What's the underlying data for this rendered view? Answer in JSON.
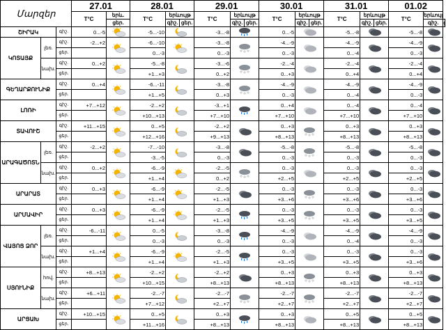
{
  "header": {
    "title": "Մարզեր",
    "dates": [
      "27.01",
      "28.01",
      "29.01",
      "30.01",
      "31.01",
      "01.02"
    ],
    "temp_label": "T°C",
    "sky_labels": [
      "երև.",
      "երևույթ",
      "երևույթ",
      "երևույթ",
      "երևույթ",
      "երևույթ"
    ],
    "night": "գիշ.",
    "day": "ցեր."
  },
  "groups": [
    {
      "region": "ՇԻՐԱԿ",
      "subs": [
        {
          "label": "",
          "rows": [
            {
              "t": [
                "0...-5",
                "-5...-10",
                "-3...-8",
                "0...-5",
                "-5...-8",
                "-5...-8"
              ],
              "ic": [
                "sun",
                "moon",
                "rain",
                "cloud",
                "dark",
                "dark"
              ]
            }
          ]
        }
      ]
    },
    {
      "region": "ԿՈՏԱՅՔ",
      "subs": [
        {
          "label": "լեռ.",
          "rows": [
            {
              "t": [
                "-2...+2",
                "-6...-10",
                "-3...-8",
                "-4...-9",
                "-4...-9",
                "-4...-9"
              ],
              "ic": [
                "sun",
                "sun",
                "snow",
                "cloud",
                "dark",
                "dark"
              ]
            },
            {
              "t": [
                "",
                "0...-3",
                "0...-3",
                "0...-3",
                "0...-4",
                "0...-3"
              ],
              "ic": [
                "",
                "",
                "",
                "",
                "",
                ""
              ]
            }
          ]
        },
        {
          "label": "նախ.",
          "rows": [
            {
              "t": [
                "0...+2",
                "-5...-8",
                "-3...-6",
                "-2...-4",
                "-2...-4",
                "-2...-4"
              ],
              "ic": [
                "sun",
                "moon",
                "snow",
                "cloud",
                "dark",
                "dark"
              ]
            },
            {
              "t": [
                "",
                "+1...+3",
                "0...+2",
                "0...+3",
                "0...+4",
                "0...+4"
              ],
              "ic": [
                "",
                "",
                "",
                "",
                "",
                ""
              ]
            }
          ]
        }
      ]
    },
    {
      "region": "ԳԵՂԱՐՔՈՒՆԻՔ",
      "subs": [
        {
          "label": "",
          "rows": [
            {
              "t": [
                "0...+4",
                "-6...-11",
                "-3...-8",
                "-4...-9",
                "-4...-9",
                "-4...-9"
              ],
              "ic": [
                "sun",
                "moon",
                "snow",
                "cloud",
                "dark",
                "dark"
              ]
            },
            {
              "t": [
                "",
                "+1...+5",
                "0...+3",
                "0...-3",
                "0...-4",
                "0...-3"
              ],
              "ic": [
                "",
                "",
                "",
                "",
                "",
                ""
              ]
            }
          ]
        }
      ]
    },
    {
      "region": "ԼՈՌԻ",
      "subs": [
        {
          "label": "",
          "rows": [
            {
              "t": [
                "+7...+12",
                "-2...+2",
                "-3...+1",
                "0...+4",
                "0...-4",
                "0...-4"
              ],
              "ic": [
                "sun",
                "moon",
                "rain",
                "cloud",
                "dark",
                "dark"
              ]
            },
            {
              "t": [
                "",
                "+10...+13",
                "+7...+10",
                "+7...+10",
                "+7...+10",
                "+7...+10"
              ],
              "ic": [
                "",
                "",
                "",
                "",
                "",
                ""
              ]
            }
          ]
        }
      ]
    },
    {
      "region": "ՏԱՎՈՒՇ",
      "subs": [
        {
          "label": "",
          "rows": [
            {
              "t": [
                "+11...+15",
                "0...+5",
                "-2...+2",
                "0...+3",
                "0...+3",
                "0...+3"
              ],
              "ic": [
                "sun",
                "moon",
                "dark",
                "snow",
                "dark",
                "dark"
              ]
            },
            {
              "t": [
                "",
                "+12...+16",
                "+9...+13",
                "+8...+13",
                "+8...+13",
                "+8...+13"
              ],
              "ic": [
                "",
                "",
                "",
                "",
                "",
                ""
              ]
            }
          ]
        }
      ]
    },
    {
      "region": "ԱՐԱԳԱԾՈՏՆ",
      "subs": [
        {
          "label": "լեռ.",
          "rows": [
            {
              "t": [
                "-2...+2",
                "-7...-10",
                "-3...-8",
                "-5...-8",
                "-5...-8",
                "-5...-8"
              ],
              "ic": [
                "sun",
                "moon",
                "dark",
                "snow",
                "dark",
                "dark"
              ]
            },
            {
              "t": [
                "",
                "-3...-5",
                "0...-3",
                "0...-3",
                "0...-3",
                "0...-3"
              ],
              "ic": [
                "",
                "",
                "",
                "",
                "",
                ""
              ]
            }
          ]
        },
        {
          "label": "նախ.",
          "rows": [
            {
              "t": [
                "0...+2",
                "-6...-9",
                "-2...-5",
                "0...-3",
                "0...-3",
                "0...-3"
              ],
              "ic": [
                "sun",
                "sun",
                "snow",
                "cloud",
                "dark",
                "dark"
              ]
            },
            {
              "t": [
                "",
                "+1...+4",
                "0...+2",
                "+2...+5",
                "+2...+5",
                "+2...+5"
              ],
              "ic": [
                "",
                "",
                "",
                "",
                "",
                ""
              ]
            }
          ]
        }
      ]
    },
    {
      "region": "ԱՐԱՐԱՏ",
      "subs": [
        {
          "label": "",
          "rows": [
            {
              "t": [
                "0...+3",
                "-6...-9",
                "-2...-5",
                "0...-3",
                "0...-3",
                "0...-3"
              ],
              "ic": [
                "sun",
                "sun",
                "dark",
                "snow",
                "dark",
                "dark"
              ]
            },
            {
              "t": [
                "",
                "+1...+4",
                "+1...+3",
                "+3...+6",
                "+3...+6",
                "+3...+6"
              ],
              "ic": [
                "",
                "",
                "",
                "",
                "",
                ""
              ]
            }
          ]
        }
      ]
    },
    {
      "region": "ԱՐՄԱՎԻՐ",
      "subs": [
        {
          "label": "",
          "rows": [
            {
              "t": [
                "0...+3",
                "-6...-9",
                "-2...-5",
                "0...-3",
                "0...-3",
                "0...-3"
              ],
              "ic": [
                "sun",
                "sun",
                "rain",
                "snow",
                "dark",
                "dark"
              ]
            },
            {
              "t": [
                "",
                "+1...+4",
                "+1...+3",
                "+3...+5",
                "+3...+5",
                "+3...+5"
              ],
              "ic": [
                "",
                "",
                "",
                "",
                "",
                ""
              ]
            }
          ]
        }
      ]
    },
    {
      "region": "ՎԱՅՈՑ ՁՈՐ",
      "subs": [
        {
          "label": "լեռ.",
          "rows": [
            {
              "t": [
                "-6...-11",
                "0...-5",
                "-3...-8",
                "-4...-9",
                "-4...-9",
                "-4...-9"
              ],
              "ic": [
                "sun",
                "moon",
                "rain",
                "cloud",
                "dark",
                "dark"
              ]
            },
            {
              "t": [
                "",
                "0...-3",
                "0...-3",
                "0...-3",
                "0...-4",
                "0...-3"
              ],
              "ic": [
                "",
                "",
                "",
                "",
                "",
                ""
              ]
            }
          ]
        },
        {
          "label": "նախ.",
          "rows": [
            {
              "t": [
                "+1...+4",
                "-6...-9",
                "-2...-5",
                "0...-3",
                "0...-3",
                "0...-3"
              ],
              "ic": [
                "sun",
                "sun",
                "rain",
                "cloud",
                "dark",
                "dark"
              ]
            },
            {
              "t": [
                "",
                "+1...+4",
                "+1...+3",
                "+3...+5",
                "+3...+5",
                "+3...+6"
              ],
              "ic": [
                "",
                "",
                "",
                "",
                "",
                ""
              ]
            }
          ]
        }
      ]
    },
    {
      "region": "ՍՅՈՒՆԻՔ",
      "subs": [
        {
          "label": "հով.",
          "rows": [
            {
              "t": [
                "+8...+13",
                "-2...+2",
                "-2...+2",
                "0...+3",
                "0...+3",
                "0...+3"
              ],
              "ic": [
                "sun",
                "moon",
                "dark",
                "snow",
                "dark",
                "dark"
              ]
            },
            {
              "t": [
                "",
                "+10...+15",
                "+8...+13",
                "+8...+13",
                "+8...+13",
                "+8...+13"
              ],
              "ic": [
                "",
                "",
                "",
                "",
                "",
                ""
              ]
            }
          ]
        },
        {
          "label": "նախ.",
          "rows": [
            {
              "t": [
                "+6...+11",
                "-2...-7",
                "-2...-7",
                "-2...-7",
                "-2...-7",
                "-2...-7"
              ],
              "ic": [
                "sun",
                "moon",
                "snow",
                "snow",
                "dark",
                "dark"
              ]
            },
            {
              "t": [
                "",
                "+7...+12",
                "+2...+7",
                "+2...+7",
                "+2...+7",
                "+2...+7"
              ],
              "ic": [
                "",
                "",
                "",
                "",
                "",
                ""
              ]
            }
          ]
        }
      ]
    },
    {
      "region": "ԱՐՑԱԽ",
      "subs": [
        {
          "label": "",
          "rows": [
            {
              "t": [
                "+10...+15",
                "0...+5",
                "0...+3",
                "0...+3",
                "0...+5",
                "0...+5"
              ],
              "ic": [
                "sun",
                "moon",
                "rain",
                "cloud",
                "dark",
                "dark"
              ]
            },
            {
              "t": [
                "",
                "+11...+16",
                "+8...+13",
                "+8...+13",
                "+8...+13",
                "+8...+13"
              ],
              "ic": [
                "",
                "",
                "",
                "",
                "",
                ""
              ]
            }
          ]
        }
      ]
    }
  ],
  "colors": {
    "sun": "#f5b400",
    "cloud": "#b0b4ba",
    "dark": "#4a4f57",
    "rain": "#2a7fd4"
  }
}
